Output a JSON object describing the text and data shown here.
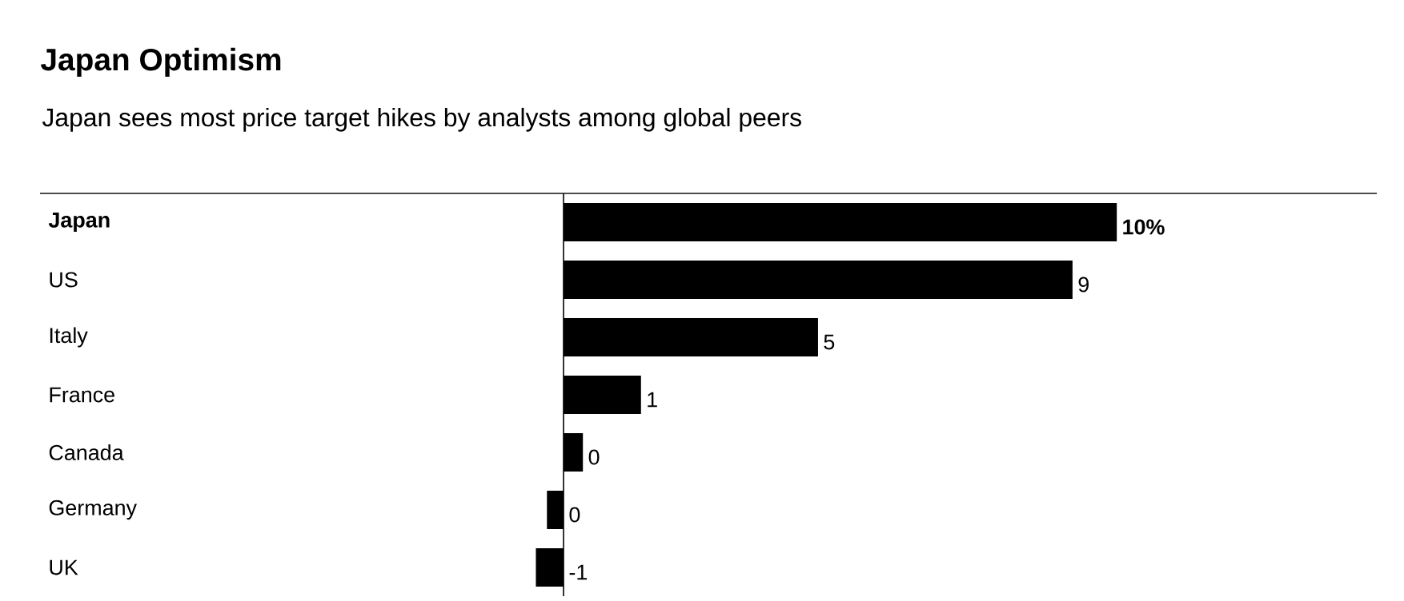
{
  "chart_data": {
    "type": "bar",
    "orientation": "horizontal",
    "title": "Japan Optimism",
    "subtitle": "Japan sees most price target hikes by analysts among global peers",
    "categories": [
      "**Japan**",
      "US",
      "Italy",
      "France",
      "Canada",
      "Germany",
      "UK"
    ],
    "values": [
      10,
      9.2,
      4.6,
      1.4,
      0.35,
      -0.3,
      -0.5
    ],
    "value_labels": [
      "**10%**",
      "9",
      "5",
      "1",
      "0",
      "0",
      "-1"
    ],
    "color": "#000000"
  }
}
